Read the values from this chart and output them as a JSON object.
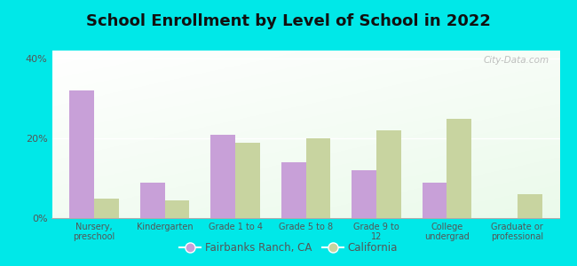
{
  "title": "School Enrollment by Level of School in 2022",
  "categories": [
    "Nursery,\npreschool",
    "Kindergarten",
    "Grade 1 to 4",
    "Grade 5 to 8",
    "Grade 9 to\n12",
    "College\nundergrad",
    "Graduate or\nprofessional"
  ],
  "fairbanks": [
    32,
    9,
    21,
    14,
    12,
    9,
    0
  ],
  "california": [
    5,
    4.5,
    19,
    20,
    22,
    25,
    6
  ],
  "fairbanks_color": "#c8a0d8",
  "california_color": "#c8d4a0",
  "background_outer": "#00e8e8",
  "ylabel_ticks": [
    "0%",
    "20%",
    "40%"
  ],
  "yticks": [
    0,
    20,
    40
  ],
  "ylim": [
    0,
    42
  ],
  "title_fontsize": 13,
  "legend_label_1": "Fairbanks Ranch, CA",
  "legend_label_2": "California",
  "watermark": "City-Data.com",
  "bar_width": 0.35,
  "tick_color": "#555555",
  "grid_color": "#ccddcc"
}
